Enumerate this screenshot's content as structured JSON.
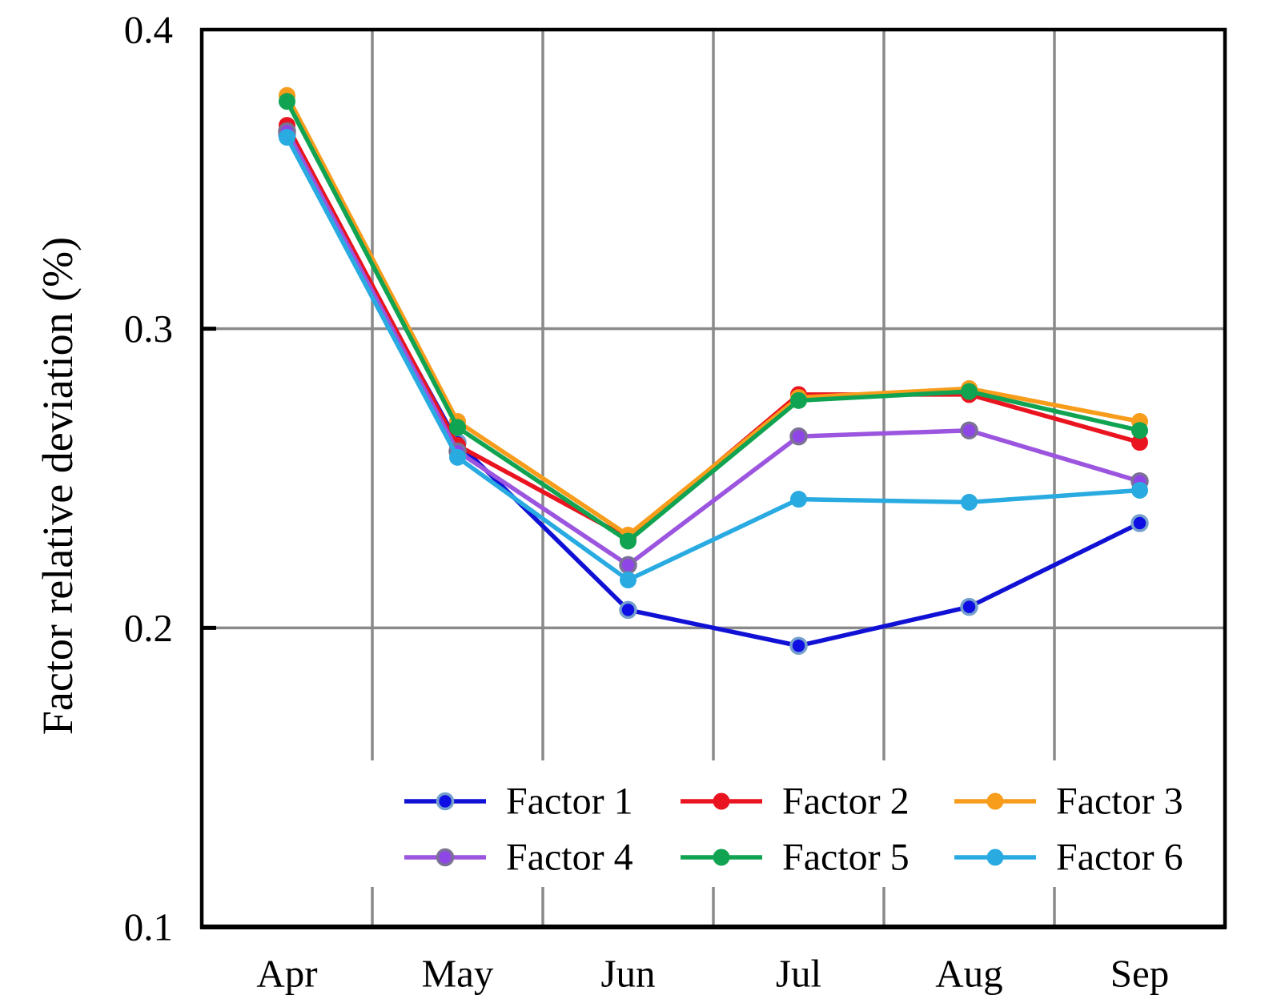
{
  "chart_data": {
    "type": "line",
    "title": "",
    "xlabel": "",
    "ylabel": "Factor relative deviation (%)",
    "categories": [
      "Apr",
      "May",
      "Jun",
      "Jul",
      "Aug",
      "Sep"
    ],
    "y_ticks": [
      "0.1",
      "0.2",
      "0.3",
      "0.4"
    ],
    "y_tick_values": [
      0.1,
      0.2,
      0.3,
      0.4
    ],
    "ylim": [
      0.1,
      0.4
    ],
    "grid": "both",
    "grid_color": "#8A8A8A",
    "axis_color": "#000000",
    "background_color": "#FFFFFF",
    "legend_position": "inside-bottom",
    "series": [
      {
        "name": "Factor 1",
        "color": "#1111D6",
        "marker_fill": "#0E0EE4",
        "marker_stroke": "#75A0CC",
        "values": [
          0.365,
          0.262,
          0.206,
          0.194,
          0.207,
          0.235
        ]
      },
      {
        "name": "Factor 2",
        "color": "#EA1420",
        "marker_fill": "#EA1420",
        "marker_stroke": "none",
        "values": [
          0.368,
          0.261,
          0.23,
          0.278,
          0.278,
          0.262
        ]
      },
      {
        "name": "Factor 3",
        "color": "#F79C1B",
        "marker_fill": "#F79C1B",
        "marker_stroke": "none",
        "values": [
          0.378,
          0.269,
          0.231,
          0.277,
          0.28,
          0.269
        ]
      },
      {
        "name": "Factor 4",
        "color": "#9B55DF",
        "marker_fill": "#8F46E6",
        "marker_stroke": "#7B7194",
        "values": [
          0.366,
          0.259,
          0.221,
          0.264,
          0.266,
          0.249
        ]
      },
      {
        "name": "Factor 5",
        "color": "#10A351",
        "marker_fill": "#10A351",
        "marker_stroke": "none",
        "values": [
          0.376,
          0.267,
          0.229,
          0.276,
          0.279,
          0.266
        ]
      },
      {
        "name": "Factor 6",
        "color": "#29ABE2",
        "marker_fill": "#29ABE2",
        "marker_stroke": "none",
        "values": [
          0.364,
          0.257,
          0.216,
          0.243,
          0.242,
          0.246
        ]
      }
    ]
  }
}
